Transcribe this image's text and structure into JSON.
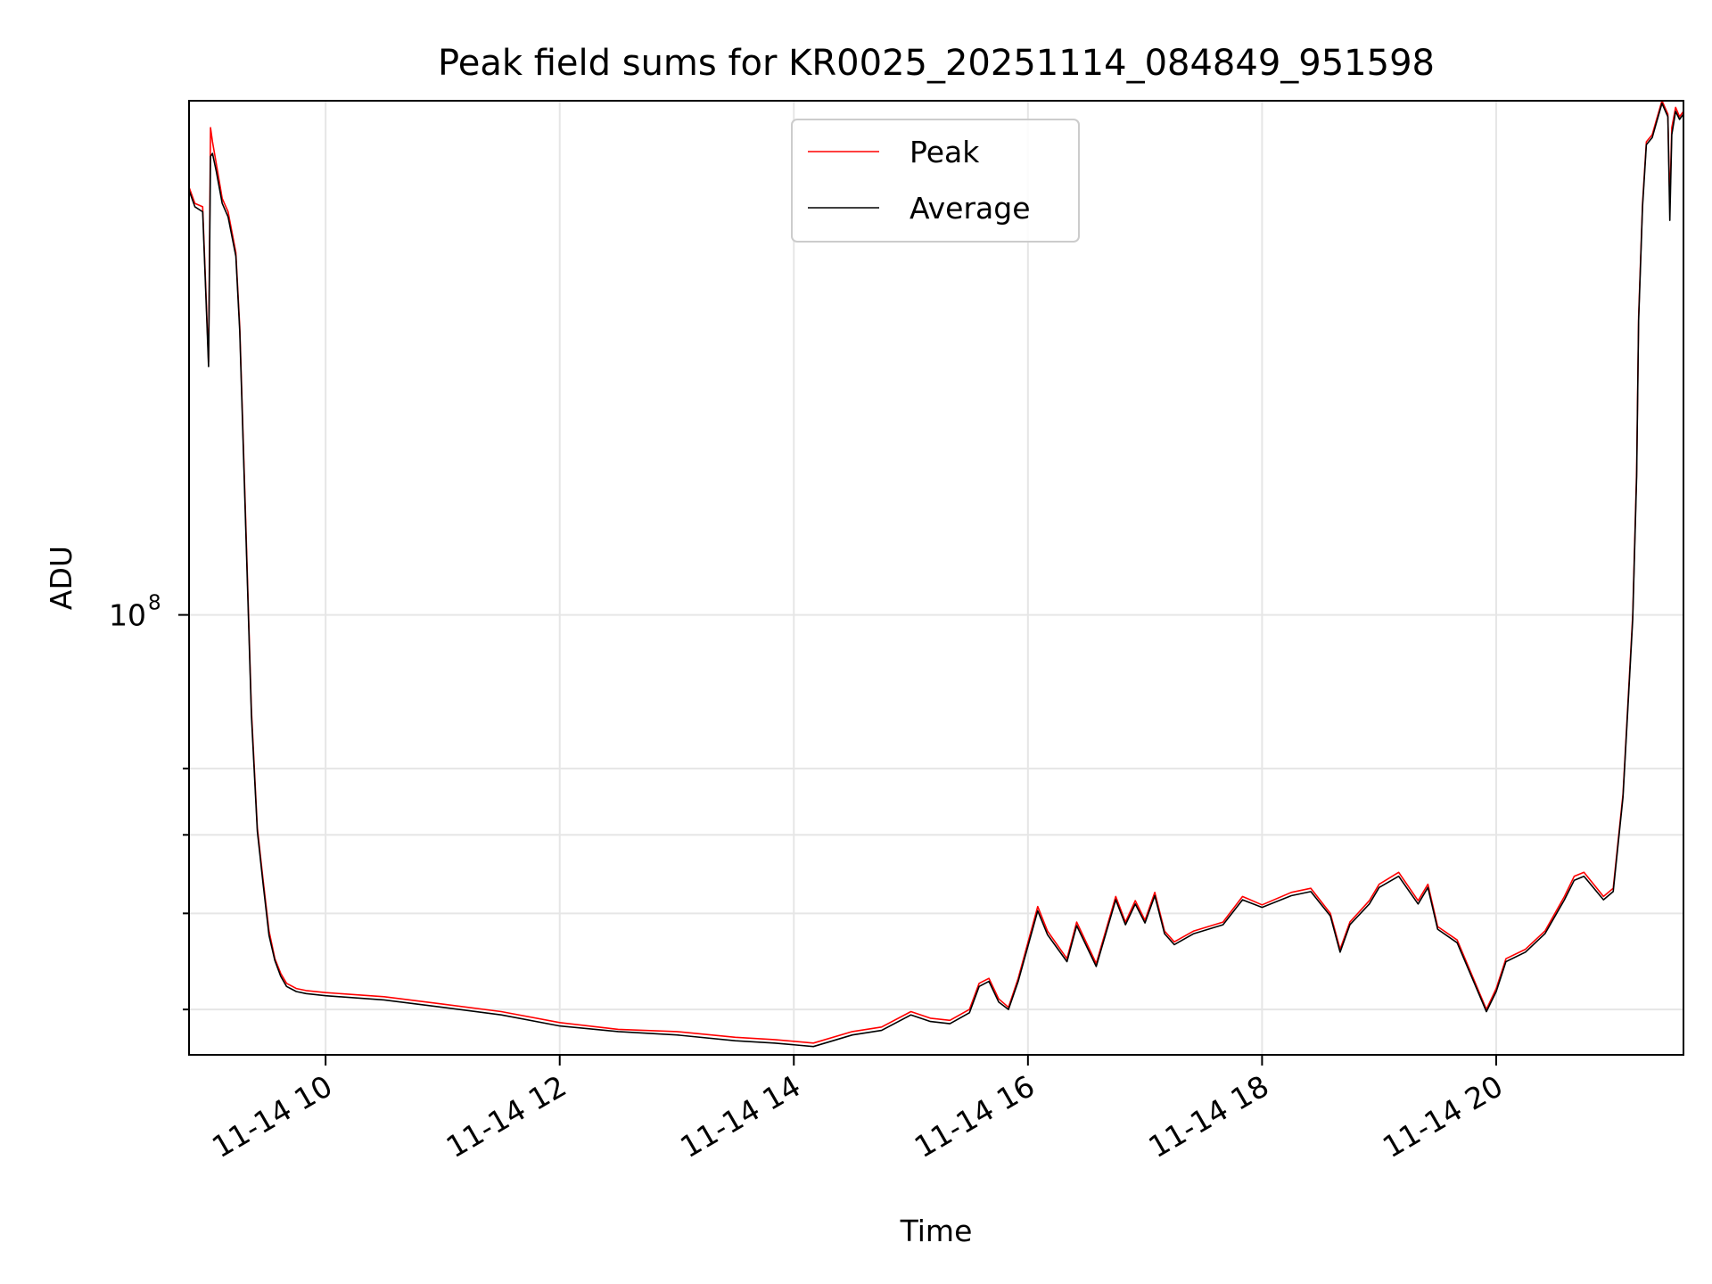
{
  "chart_data": {
    "type": "line",
    "title": "Peak field sums for KR0025_20251114_084849_951598",
    "xlabel": "Time",
    "ylabel": "ADU",
    "x_scale": "time",
    "y_scale": "log",
    "xlim": [
      "2025-11-14 08:50",
      "2025-11-14 21:36"
    ],
    "ylim": [
      36000000,
      330000000
    ],
    "x_ticks": [
      "11-14 10",
      "11-14 12",
      "11-14 14",
      "11-14 16",
      "11-14 18",
      "11-14 20"
    ],
    "x_tick_values": [
      "2025-11-14 10:00",
      "2025-11-14 12:00",
      "2025-11-14 14:00",
      "2025-11-14 16:00",
      "2025-11-14 18:00",
      "2025-11-14 20:00"
    ],
    "y_major_ticks": [
      {
        "value": 100000000,
        "base": "10",
        "exp": "8"
      }
    ],
    "y_minor_ticks": [
      40000000,
      50000000,
      60000000,
      70000000
    ],
    "grid": true,
    "legend_position": "top-center",
    "colors": {
      "peak": "#ff0000",
      "average": "#000000",
      "grid": "#e6e6e6"
    },
    "series": [
      {
        "name": "Peak",
        "x": [
          "2025-11-14 08:50",
          "2025-11-14 08:53",
          "2025-11-14 08:57",
          "2025-11-14 09:00",
          "2025-11-14 09:01",
          "2025-11-14 09:02",
          "2025-11-14 09:04",
          "2025-11-14 09:07",
          "2025-11-14 09:10",
          "2025-11-14 09:14",
          "2025-11-14 09:16",
          "2025-11-14 09:19",
          "2025-11-14 09:22",
          "2025-11-14 09:25",
          "2025-11-14 09:28",
          "2025-11-14 09:31",
          "2025-11-14 09:34",
          "2025-11-14 09:37",
          "2025-11-14 09:40",
          "2025-11-14 09:45",
          "2025-11-14 09:50",
          "2025-11-14 10:00",
          "2025-11-14 10:30",
          "2025-11-14 11:00",
          "2025-11-14 11:30",
          "2025-11-14 12:00",
          "2025-11-14 12:30",
          "2025-11-14 13:00",
          "2025-11-14 13:30",
          "2025-11-14 13:50",
          "2025-11-14 14:10",
          "2025-11-14 14:30",
          "2025-11-14 14:45",
          "2025-11-14 15:00",
          "2025-11-14 15:10",
          "2025-11-14 15:20",
          "2025-11-14 15:30",
          "2025-11-14 15:35",
          "2025-11-14 15:40",
          "2025-11-14 15:45",
          "2025-11-14 15:50",
          "2025-11-14 15:55",
          "2025-11-14 16:05",
          "2025-11-14 16:10",
          "2025-11-14 16:20",
          "2025-11-14 16:25",
          "2025-11-14 16:35",
          "2025-11-14 16:45",
          "2025-11-14 16:50",
          "2025-11-14 16:55",
          "2025-11-14 17:00",
          "2025-11-14 17:05",
          "2025-11-14 17:10",
          "2025-11-14 17:15",
          "2025-11-14 17:25",
          "2025-11-14 17:40",
          "2025-11-14 17:50",
          "2025-11-14 18:00",
          "2025-11-14 18:15",
          "2025-11-14 18:25",
          "2025-11-14 18:35",
          "2025-11-14 18:40",
          "2025-11-14 18:45",
          "2025-11-14 18:55",
          "2025-11-14 19:00",
          "2025-11-14 19:10",
          "2025-11-14 19:20",
          "2025-11-14 19:25",
          "2025-11-14 19:30",
          "2025-11-14 19:40",
          "2025-11-14 19:55",
          "2025-11-14 20:00",
          "2025-11-14 20:05",
          "2025-11-14 20:15",
          "2025-11-14 20:25",
          "2025-11-14 20:35",
          "2025-11-14 20:40",
          "2025-11-14 20:45",
          "2025-11-14 20:55",
          "2025-11-14 21:00",
          "2025-11-14 21:05",
          "2025-11-14 21:10",
          "2025-11-14 21:12",
          "2025-11-14 21:13",
          "2025-11-14 21:15",
          "2025-11-14 21:17",
          "2025-11-14 21:20",
          "2025-11-14 21:22",
          "2025-11-14 21:25",
          "2025-11-14 21:28",
          "2025-11-14 21:29",
          "2025-11-14 21:30",
          "2025-11-14 21:32",
          "2025-11-14 21:34",
          "2025-11-14 21:36"
        ],
        "y": [
          270000000,
          260000000,
          258000000,
          180000000,
          310000000,
          300000000,
          285000000,
          263000000,
          255000000,
          232000000,
          195000000,
          125000000,
          80000000,
          61000000,
          54000000,
          48000000,
          45000000,
          43500000,
          42500000,
          42000000,
          41800000,
          41600000,
          41200000,
          40500000,
          39800000,
          38800000,
          38200000,
          38000000,
          37500000,
          37300000,
          37000000,
          38000000,
          38400000,
          39800000,
          39200000,
          39000000,
          40000000,
          42500000,
          43000000,
          41000000,
          40200000,
          43000000,
          50800000,
          48000000,
          45000000,
          49000000,
          44500000,
          52000000,
          49000000,
          51500000,
          49200000,
          52500000,
          48000000,
          46800000,
          48000000,
          49000000,
          52000000,
          51000000,
          52500000,
          53000000,
          50000000,
          46000000,
          49000000,
          51500000,
          53500000,
          55000000,
          51500000,
          53500000,
          48500000,
          47000000,
          40000000,
          42000000,
          45000000,
          46000000,
          48000000,
          52000000,
          54500000,
          55000000,
          52000000,
          53000000,
          66000000,
          100000000,
          140000000,
          200000000,
          260000000,
          300000000,
          305000000,
          315000000,
          330000000,
          320000000,
          260000000,
          310000000,
          325000000,
          318000000,
          322000000
        ]
      },
      {
        "name": "Average",
        "x": [
          "2025-11-14 08:50",
          "2025-11-14 08:53",
          "2025-11-14 08:57",
          "2025-11-14 09:00",
          "2025-11-14 09:01",
          "2025-11-14 09:02",
          "2025-11-14 09:04",
          "2025-11-14 09:07",
          "2025-11-14 09:10",
          "2025-11-14 09:14",
          "2025-11-14 09:16",
          "2025-11-14 09:19",
          "2025-11-14 09:22",
          "2025-11-14 09:25",
          "2025-11-14 09:28",
          "2025-11-14 09:31",
          "2025-11-14 09:34",
          "2025-11-14 09:37",
          "2025-11-14 09:40",
          "2025-11-14 09:45",
          "2025-11-14 09:50",
          "2025-11-14 10:00",
          "2025-11-14 10:30",
          "2025-11-14 11:00",
          "2025-11-14 11:30",
          "2025-11-14 12:00",
          "2025-11-14 12:30",
          "2025-11-14 13:00",
          "2025-11-14 13:30",
          "2025-11-14 13:50",
          "2025-11-14 14:10",
          "2025-11-14 14:30",
          "2025-11-14 14:45",
          "2025-11-14 15:00",
          "2025-11-14 15:10",
          "2025-11-14 15:20",
          "2025-11-14 15:30",
          "2025-11-14 15:35",
          "2025-11-14 15:40",
          "2025-11-14 15:45",
          "2025-11-14 15:50",
          "2025-11-14 15:55",
          "2025-11-14 16:05",
          "2025-11-14 16:10",
          "2025-11-14 16:20",
          "2025-11-14 16:25",
          "2025-11-14 16:35",
          "2025-11-14 16:45",
          "2025-11-14 16:50",
          "2025-11-14 16:55",
          "2025-11-14 17:00",
          "2025-11-14 17:05",
          "2025-11-14 17:10",
          "2025-11-14 17:15",
          "2025-11-14 17:25",
          "2025-11-14 17:40",
          "2025-11-14 17:50",
          "2025-11-14 18:00",
          "2025-11-14 18:15",
          "2025-11-14 18:25",
          "2025-11-14 18:35",
          "2025-11-14 18:40",
          "2025-11-14 18:45",
          "2025-11-14 18:55",
          "2025-11-14 19:00",
          "2025-11-14 19:10",
          "2025-11-14 19:20",
          "2025-11-14 19:25",
          "2025-11-14 19:30",
          "2025-11-14 19:40",
          "2025-11-14 19:55",
          "2025-11-14 20:00",
          "2025-11-14 20:05",
          "2025-11-14 20:15",
          "2025-11-14 20:25",
          "2025-11-14 20:35",
          "2025-11-14 20:40",
          "2025-11-14 20:45",
          "2025-11-14 20:55",
          "2025-11-14 21:00",
          "2025-11-14 21:05",
          "2025-11-14 21:10",
          "2025-11-14 21:12",
          "2025-11-14 21:13",
          "2025-11-14 21:15",
          "2025-11-14 21:17",
          "2025-11-14 21:20",
          "2025-11-14 21:22",
          "2025-11-14 21:25",
          "2025-11-14 21:28",
          "2025-11-14 21:29",
          "2025-11-14 21:30",
          "2025-11-14 21:32",
          "2025-11-14 21:34",
          "2025-11-14 21:36"
        ],
        "y": [
          268000000,
          258000000,
          255000000,
          178000000,
          290000000,
          292000000,
          280000000,
          260000000,
          252000000,
          230000000,
          193000000,
          123000000,
          79000000,
          60500000,
          53500000,
          47500000,
          44800000,
          43200000,
          42200000,
          41700000,
          41500000,
          41300000,
          40900000,
          40200000,
          39500000,
          38500000,
          38000000,
          37700000,
          37200000,
          37000000,
          36700000,
          37700000,
          38100000,
          39500000,
          38900000,
          38700000,
          39700000,
          42200000,
          42700000,
          40700000,
          40000000,
          42700000,
          50300000,
          47600000,
          44700000,
          48600000,
          44200000,
          51600000,
          48700000,
          51100000,
          48900000,
          52100000,
          47700000,
          46500000,
          47700000,
          48700000,
          51600000,
          50700000,
          52100000,
          52600000,
          49700000,
          45700000,
          48700000,
          51100000,
          53100000,
          54500000,
          51100000,
          53100000,
          48200000,
          46700000,
          39800000,
          41700000,
          44700000,
          45700000,
          47700000,
          51600000,
          54000000,
          54500000,
          51600000,
          52600000,
          65500000,
          99000000,
          138000000,
          198000000,
          258000000,
          298000000,
          303000000,
          313000000,
          328000000,
          318000000,
          250000000,
          305000000,
          322000000,
          316000000,
          320000000
        ]
      }
    ]
  }
}
